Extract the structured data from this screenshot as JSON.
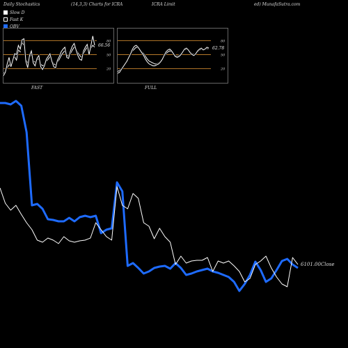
{
  "header": {
    "left": "Daily Stochastics",
    "params": "(14,3,3) Charts for ICRA",
    "name": "ICRA Limit",
    "site": "ed) MunafaSutra.com"
  },
  "legend": {
    "items": [
      {
        "label": "Slow  D",
        "color": "#ffffff"
      },
      {
        "label": "Fast  K",
        "color": "#ffffff"
      },
      {
        "label": "OBV",
        "color": "#1e6bff"
      }
    ]
  },
  "colors": {
    "background": "#000000",
    "obv": "#1e6bff",
    "price": "#ffffff",
    "level_line": "#b87a2a"
  },
  "chart_data": [
    {
      "type": "line",
      "label": "FAST",
      "levels": [
        20,
        50,
        80
      ],
      "level_labels": [
        "20",
        "50",
        "80"
      ],
      "value_label": "66.56",
      "ylim": [
        0,
        100
      ],
      "series": [
        {
          "values": [
            10,
            14,
            22,
            28,
            26,
            40,
            45,
            38,
            60,
            56,
            76,
            70,
            40,
            32,
            44,
            52,
            36,
            34,
            38,
            42,
            30,
            26,
            28,
            36,
            40,
            46,
            38,
            30,
            28,
            34,
            40,
            48,
            54,
            58,
            50,
            46,
            52,
            60,
            66,
            62,
            54,
            48,
            44,
            52,
            60,
            66,
            56,
            64,
            70,
            66
          ]
        },
        {
          "values": [
            5,
            12,
            30,
            44,
            24,
            38,
            52,
            50,
            70,
            62,
            82,
            84,
            36,
            22,
            48,
            58,
            32,
            26,
            42,
            48,
            24,
            18,
            26,
            40,
            46,
            52,
            36,
            24,
            22,
            38,
            46,
            56,
            62,
            66,
            44,
            42,
            58,
            68,
            74,
            60,
            48,
            40,
            38,
            58,
            66,
            72,
            50,
            70,
            90,
            70
          ]
        }
      ]
    },
    {
      "type": "line",
      "label": "FULL",
      "levels": [
        20,
        50,
        80
      ],
      "level_labels": [
        "20",
        "50",
        "80"
      ],
      "value_label": "62.78",
      "ylim": [
        0,
        100
      ],
      "series": [
        {
          "values": [
            14,
            16,
            20,
            26,
            32,
            38,
            44,
            50,
            58,
            62,
            66,
            64,
            60,
            56,
            52,
            46,
            40,
            36,
            34,
            32,
            30,
            30,
            32,
            36,
            40,
            46,
            52,
            56,
            58,
            56,
            52,
            48,
            46,
            48,
            52,
            56,
            60,
            62,
            60,
            56,
            52,
            50,
            52,
            56,
            60,
            62,
            62,
            62,
            63,
            63
          ]
        },
        {
          "values": [
            10,
            12,
            18,
            24,
            30,
            36,
            44,
            52,
            62,
            68,
            70,
            66,
            60,
            54,
            48,
            40,
            34,
            30,
            28,
            26,
            26,
            28,
            30,
            34,
            40,
            48,
            56,
            60,
            62,
            58,
            52,
            46,
            44,
            46,
            50,
            56,
            62,
            64,
            60,
            54,
            50,
            48,
            52,
            58,
            62,
            64,
            60,
            62,
            66,
            64
          ]
        }
      ]
    },
    {
      "type": "line",
      "value_label": "6101.00Close",
      "series": [
        {
          "name": "OBV",
          "values": [
            148,
            148,
            150,
            145,
            152,
            190,
            295,
            293,
            300,
            315,
            316,
            318,
            318,
            313,
            318,
            312,
            310,
            312,
            310,
            335,
            330,
            328,
            262,
            275,
            382,
            378,
            385,
            393,
            390,
            385,
            383,
            382,
            386,
            378,
            385,
            395,
            393,
            390,
            388,
            386,
            390,
            392,
            395,
            398,
            405,
            418,
            408,
            395,
            376,
            388,
            405,
            400,
            388,
            375,
            372,
            380,
            385
          ]
        },
        {
          "name": "Price",
          "values": [
            270,
            292,
            302,
            295,
            308,
            320,
            330,
            345,
            348,
            342,
            345,
            350,
            340,
            346,
            348,
            346,
            345,
            342,
            320,
            330,
            340,
            345,
            268,
            295,
            300,
            278,
            285,
            320,
            325,
            343,
            328,
            340,
            348,
            380,
            368,
            378,
            375,
            374,
            374,
            370,
            390,
            375,
            378,
            375,
            382,
            390,
            405,
            400,
            380,
            375,
            368,
            385,
            398,
            408,
            412,
            370,
            380
          ]
        }
      ]
    }
  ]
}
